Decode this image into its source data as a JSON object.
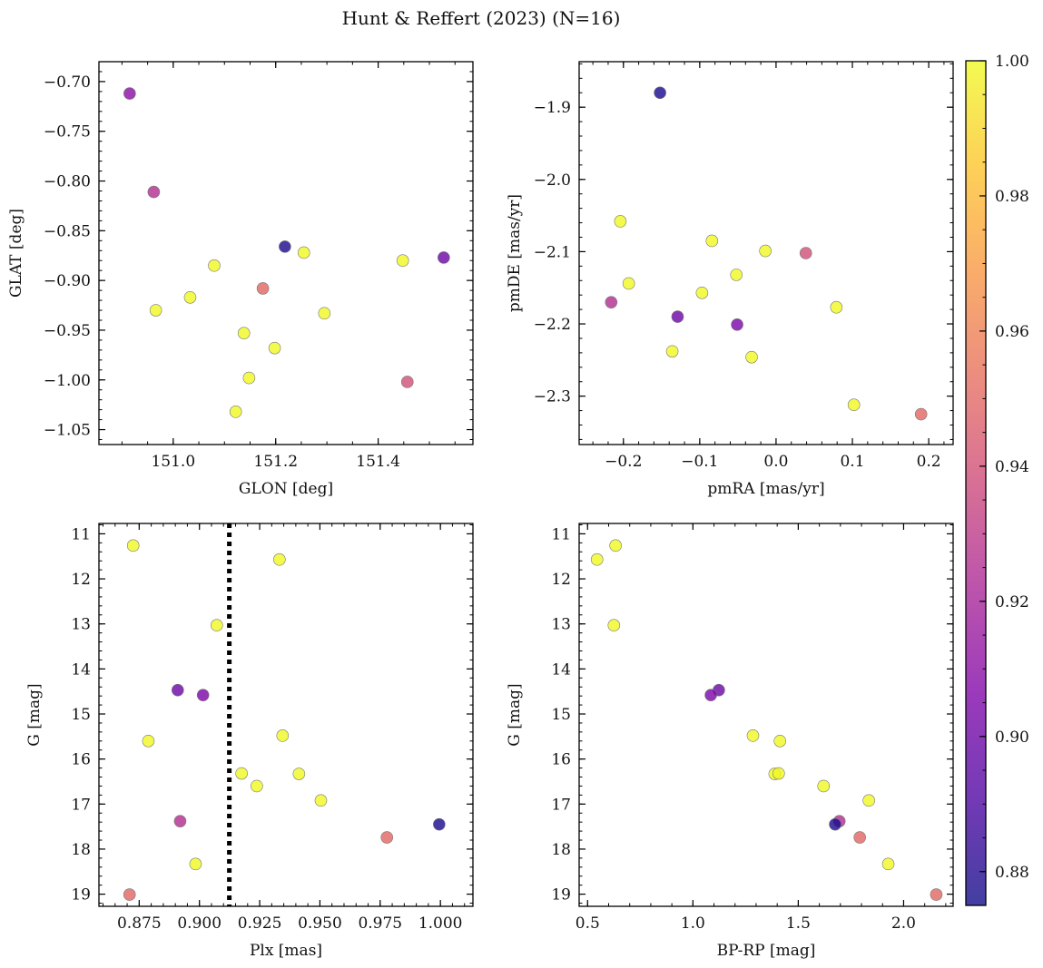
{
  "figure": {
    "title": "Hunt & Reffert (2023) (N=16)"
  },
  "colorbar": {
    "cmap": "plasma",
    "vmin": 0.875,
    "vmax": 1.0,
    "ticks": [
      0.88,
      0.9,
      0.92,
      0.94,
      0.96,
      0.98,
      1.0
    ],
    "tick_labels": [
      "0.88",
      "0.90",
      "0.92",
      "0.94",
      "0.96",
      "0.98",
      "1.00"
    ]
  },
  "chart_data": [
    {
      "id": "glon_glat",
      "type": "scatter",
      "xlabel": "GLON [deg]",
      "ylabel": "GLAT [deg]",
      "xlim": [
        150.855,
        151.585
      ],
      "ylim": [
        -1.065,
        -0.68
      ],
      "invert_y": false,
      "xticks": [
        151.0,
        151.2,
        151.4
      ],
      "xtick_labels": [
        "151.0",
        "151.2",
        "151.4"
      ],
      "xminor": 0.05,
      "yticks": [
        -1.05,
        -1.0,
        -0.95,
        -0.9,
        -0.85,
        -0.8,
        -0.75,
        -0.7
      ],
      "ytick_labels": [
        "−1.05",
        "−1.00",
        "−0.95",
        "−0.90",
        "−0.85",
        "−0.80",
        "−0.75",
        "−0.70"
      ],
      "yminor": 0.01,
      "points": [
        {
          "x": 150.915,
          "y": -0.712,
          "c": 0.91
        },
        {
          "x": 150.962,
          "y": -0.811,
          "c": 0.925
        },
        {
          "x": 150.966,
          "y": -0.93,
          "c": 1.0
        },
        {
          "x": 151.033,
          "y": -0.917,
          "c": 1.0
        },
        {
          "x": 151.08,
          "y": -0.885,
          "c": 1.0
        },
        {
          "x": 151.122,
          "y": -1.032,
          "c": 1.0
        },
        {
          "x": 151.138,
          "y": -0.953,
          "c": 1.0
        },
        {
          "x": 151.148,
          "y": -0.998,
          "c": 1.0
        },
        {
          "x": 151.175,
          "y": -0.908,
          "c": 0.95
        },
        {
          "x": 151.198,
          "y": -0.968,
          "c": 1.0
        },
        {
          "x": 151.218,
          "y": -0.866,
          "c": 0.878
        },
        {
          "x": 151.255,
          "y": -0.872,
          "c": 1.0
        },
        {
          "x": 151.295,
          "y": -0.933,
          "c": 1.0
        },
        {
          "x": 151.448,
          "y": -0.88,
          "c": 1.0
        },
        {
          "x": 151.457,
          "y": -1.002,
          "c": 0.94
        },
        {
          "x": 151.528,
          "y": -0.877,
          "c": 0.9
        }
      ]
    },
    {
      "id": "pmra_pmde",
      "type": "scatter",
      "xlabel": "pmRA [mas/yr]",
      "ylabel": "pmDE [mas/yr]",
      "xlim": [
        -0.258,
        0.232
      ],
      "ylim": [
        -2.367,
        -1.837
      ],
      "invert_y": false,
      "xticks": [
        -0.2,
        -0.1,
        0.0,
        0.1,
        0.2
      ],
      "xtick_labels": [
        "−0.2",
        "−0.1",
        "0.0",
        "0.1",
        "0.2"
      ],
      "xminor": 0.02,
      "yticks": [
        -2.3,
        -2.2,
        -2.1,
        -2.0,
        -1.9
      ],
      "ytick_labels": [
        "−2.3",
        "−2.2",
        "−2.1",
        "−2.0",
        "−1.9"
      ],
      "yminor": 0.02,
      "points": [
        {
          "x": -0.152,
          "y": -1.88,
          "c": 0.878
        },
        {
          "x": -0.216,
          "y": -2.17,
          "c": 0.925
        },
        {
          "x": -0.204,
          "y": -2.058,
          "c": 1.0
        },
        {
          "x": -0.193,
          "y": -2.144,
          "c": 1.0
        },
        {
          "x": -0.136,
          "y": -2.238,
          "c": 1.0
        },
        {
          "x": -0.129,
          "y": -2.19,
          "c": 0.9
        },
        {
          "x": -0.097,
          "y": -2.157,
          "c": 1.0
        },
        {
          "x": -0.084,
          "y": -2.085,
          "c": 1.0
        },
        {
          "x": -0.052,
          "y": -2.132,
          "c": 1.0
        },
        {
          "x": -0.051,
          "y": -2.201,
          "c": 0.905
        },
        {
          "x": -0.032,
          "y": -2.246,
          "c": 1.0
        },
        {
          "x": -0.014,
          "y": -2.099,
          "c": 1.0
        },
        {
          "x": 0.039,
          "y": -2.102,
          "c": 0.94
        },
        {
          "x": 0.079,
          "y": -2.177,
          "c": 1.0
        },
        {
          "x": 0.102,
          "y": -2.312,
          "c": 1.0
        },
        {
          "x": 0.19,
          "y": -2.325,
          "c": 0.95
        }
      ]
    },
    {
      "id": "plx_g",
      "type": "scatter",
      "xlabel": "Plx [mas]",
      "ylabel": "G [mag]",
      "xlim": [
        0.8583,
        1.0135
      ],
      "ylim": [
        19.27,
        10.77
      ],
      "invert_y": true,
      "xticks": [
        0.875,
        0.9,
        0.925,
        0.95,
        0.975,
        1.0
      ],
      "xtick_labels": [
        "0.875",
        "0.900",
        "0.925",
        "0.950",
        "0.975",
        "1.000"
      ],
      "xminor": 0.005,
      "yticks": [
        11,
        12,
        13,
        14,
        15,
        16,
        17,
        18,
        19
      ],
      "ytick_labels": [
        "11",
        "12",
        "13",
        "14",
        "15",
        "16",
        "17",
        "18",
        "19"
      ],
      "yminor": 0.2,
      "vline": {
        "x": 0.9124,
        "style": "dotted"
      },
      "points": [
        {
          "x": 0.8725,
          "y": 11.26,
          "c": 1.0
        },
        {
          "x": 0.9332,
          "y": 11.57,
          "c": 1.0
        },
        {
          "x": 0.9072,
          "y": 13.03,
          "c": 1.0
        },
        {
          "x": 0.891,
          "y": 14.47,
          "c": 0.9
        },
        {
          "x": 0.9015,
          "y": 14.58,
          "c": 0.905
        },
        {
          "x": 0.9345,
          "y": 15.48,
          "c": 1.0
        },
        {
          "x": 0.8788,
          "y": 15.6,
          "c": 1.0
        },
        {
          "x": 0.9175,
          "y": 16.32,
          "c": 1.0
        },
        {
          "x": 0.9413,
          "y": 16.33,
          "c": 1.0
        },
        {
          "x": 0.9238,
          "y": 16.6,
          "c": 1.0
        },
        {
          "x": 0.9504,
          "y": 16.92,
          "c": 1.0
        },
        {
          "x": 0.892,
          "y": 17.38,
          "c": 0.925
        },
        {
          "x": 0.9995,
          "y": 17.45,
          "c": 0.878
        },
        {
          "x": 0.9778,
          "y": 17.74,
          "c": 0.95
        },
        {
          "x": 0.8984,
          "y": 18.33,
          "c": 1.0
        },
        {
          "x": 0.871,
          "y": 19.01,
          "c": 0.95
        }
      ]
    },
    {
      "id": "bprp_g",
      "type": "scatter",
      "xlabel": "BP-RP [mag]",
      "ylabel": "G [mag]",
      "xlim": [
        0.46,
        2.235
      ],
      "ylim": [
        19.27,
        10.77
      ],
      "invert_y": true,
      "xticks": [
        0.5,
        1.0,
        1.5,
        2.0
      ],
      "xtick_labels": [
        "0.5",
        "1.0",
        "1.5",
        "2.0"
      ],
      "xminor": 0.1,
      "yticks": [
        11,
        12,
        13,
        14,
        15,
        16,
        17,
        18,
        19
      ],
      "ytick_labels": [
        "11",
        "12",
        "13",
        "14",
        "15",
        "16",
        "17",
        "18",
        "19"
      ],
      "yminor": 0.2,
      "points": [
        {
          "x": 0.633,
          "y": 11.26,
          "c": 1.0
        },
        {
          "x": 0.545,
          "y": 11.57,
          "c": 1.0
        },
        {
          "x": 0.625,
          "y": 13.03,
          "c": 1.0
        },
        {
          "x": 1.123,
          "y": 14.47,
          "c": 0.9
        },
        {
          "x": 1.085,
          "y": 14.58,
          "c": 0.905
        },
        {
          "x": 1.285,
          "y": 15.48,
          "c": 1.0
        },
        {
          "x": 1.413,
          "y": 15.6,
          "c": 1.0
        },
        {
          "x": 1.388,
          "y": 16.33,
          "c": 1.0
        },
        {
          "x": 1.407,
          "y": 16.32,
          "c": 1.0
        },
        {
          "x": 1.62,
          "y": 16.6,
          "c": 1.0
        },
        {
          "x": 1.835,
          "y": 16.92,
          "c": 1.0
        },
        {
          "x": 1.695,
          "y": 17.38,
          "c": 0.925
        },
        {
          "x": 1.675,
          "y": 17.45,
          "c": 0.878
        },
        {
          "x": 1.792,
          "y": 17.74,
          "c": 0.95
        },
        {
          "x": 1.927,
          "y": 18.33,
          "c": 1.0
        },
        {
          "x": 2.155,
          "y": 19.01,
          "c": 0.95
        }
      ]
    }
  ]
}
